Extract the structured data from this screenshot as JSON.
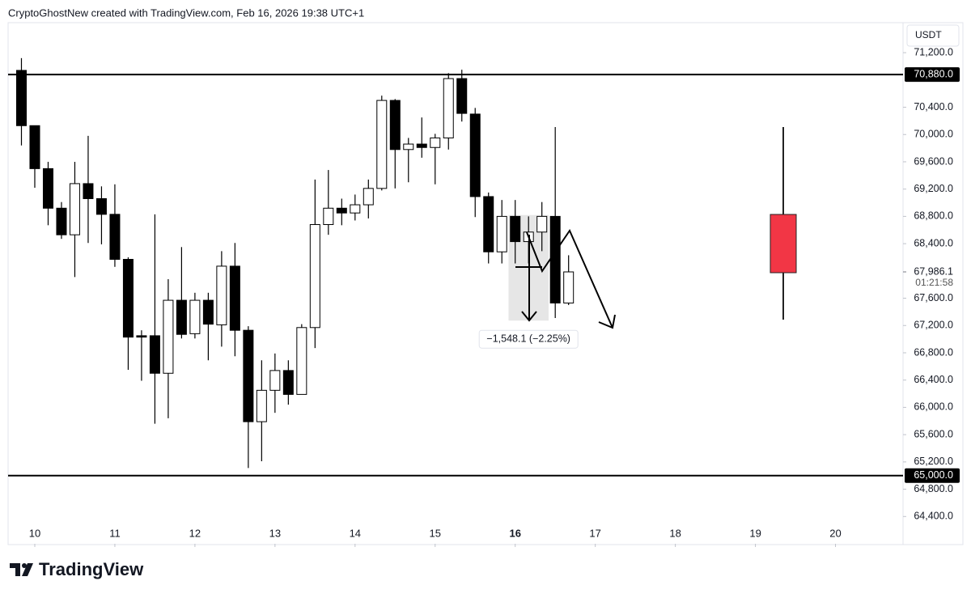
{
  "header": "CryptoGhostNew created with TradingView.com, Feb 16, 2026 19:38 UTC+1",
  "chart_data": {
    "type": "candlestick",
    "currency": "USDT",
    "x": [
      0,
      1,
      2,
      3,
      4,
      5,
      6,
      7,
      8,
      9,
      10,
      11,
      12,
      13,
      14,
      15,
      16,
      17,
      18,
      19,
      20,
      21,
      22,
      23,
      24,
      25,
      26,
      27,
      28,
      29,
      30,
      31,
      32,
      33,
      34,
      35,
      36,
      37,
      38,
      39,
      40,
      41
    ],
    "open": [
      70940,
      70130,
      69500,
      68920,
      68530,
      69280,
      69060,
      68830,
      68170,
      67050,
      67050,
      66500,
      67570,
      67080,
      67570,
      67210,
      68070,
      67130,
      65790,
      66250,
      66540,
      66190,
      67170,
      68680,
      68920,
      68850,
      68970,
      69210,
      70500,
      69780,
      69860,
      69810,
      69950,
      70820,
      70300,
      69090,
      68280,
      68800,
      68430,
      68570,
      68800,
      67530
    ],
    "high": [
      71120,
      70130,
      69600,
      69010,
      69600,
      69980,
      69240,
      69270,
      68200,
      67130,
      68830,
      67880,
      68350,
      67680,
      67680,
      68290,
      68410,
      67190,
      66690,
      66790,
      66690,
      67220,
      69340,
      69480,
      69060,
      69120,
      69340,
      70570,
      70520,
      69950,
      70250,
      70010,
      70900,
      70950,
      70390,
      69150,
      69040,
      69040,
      68800,
      69010,
      70110,
      68230
    ],
    "low": [
      69840,
      69220,
      68670,
      68470,
      67910,
      68410,
      68390,
      68060,
      66550,
      66390,
      65760,
      65840,
      67010,
      67010,
      66690,
      66890,
      66750,
      65110,
      65210,
      65920,
      66040,
      66190,
      66870,
      68530,
      68670,
      68740,
      68770,
      69180,
      69210,
      69300,
      69660,
      69270,
      69780,
      70190,
      68790,
      68110,
      68110,
      68110,
      68110,
      68290,
      67310,
      67500
    ],
    "close": [
      70130,
      69500,
      68920,
      68530,
      69280,
      69060,
      68830,
      68170,
      67030,
      67030,
      66500,
      67570,
      67070,
      67570,
      67220,
      68070,
      67130,
      65790,
      66250,
      66540,
      66190,
      67170,
      68680,
      68920,
      68850,
      68970,
      69210,
      70500,
      69780,
      69860,
      69810,
      69950,
      70820,
      70310,
      69090,
      68280,
      68800,
      68430,
      68570,
      68800,
      67530,
      67986.1
    ],
    "up_color": "#ffffff",
    "down_color": "#000000",
    "xlim": [
      -1,
      66
    ],
    "xticks": [
      {
        "value": 1,
        "label": "10"
      },
      {
        "value": 7,
        "label": "11"
      },
      {
        "value": 13,
        "label": "12"
      },
      {
        "value": 19,
        "label": "13"
      },
      {
        "value": 25,
        "label": "14"
      },
      {
        "value": 31,
        "label": "15"
      },
      {
        "value": 37,
        "label": "16"
      },
      {
        "value": 43,
        "label": "17"
      },
      {
        "value": 49,
        "label": "18"
      },
      {
        "value": 55,
        "label": "19"
      },
      {
        "value": 61,
        "label": "20"
      }
    ],
    "emphasized_xtick": 6,
    "ylim": [
      64000,
      71640
    ],
    "yticks": [
      {
        "value": 71200,
        "label": "71,200.0"
      },
      {
        "value": 70400,
        "label": "70,400.0"
      },
      {
        "value": 70000,
        "label": "70,000.0"
      },
      {
        "value": 69600,
        "label": "69,600.0"
      },
      {
        "value": 69200,
        "label": "69,200.0"
      },
      {
        "value": 68800,
        "label": "68,800.0"
      },
      {
        "value": 68400,
        "label": "68,400.0"
      },
      {
        "value": 67600,
        "label": "67,600.0"
      },
      {
        "value": 67200,
        "label": "67,200.0"
      },
      {
        "value": 66800,
        "label": "66,800.0"
      },
      {
        "value": 66400,
        "label": "66,400.0"
      },
      {
        "value": 66000,
        "label": "66,000.0"
      },
      {
        "value": 65600,
        "label": "65,600.0"
      },
      {
        "value": 65200,
        "label": "65,200.0"
      },
      {
        "value": 64800,
        "label": "64,800.0"
      },
      {
        "value": 64400,
        "label": "64,400.0"
      }
    ],
    "price_lines": [
      {
        "value": 70880,
        "label": "70,880.0"
      },
      {
        "value": 65000,
        "label": "65,000.0"
      }
    ],
    "last_price": {
      "value": 67986.1,
      "label": "67,986.1",
      "countdown": "01:21:58"
    },
    "measure": {
      "start": 68820,
      "change": -1548.1,
      "label": "−1,548.1 (−2.25%)",
      "x": [
        37,
        39
      ]
    }
  },
  "footer": {
    "logo": "TradingView"
  }
}
